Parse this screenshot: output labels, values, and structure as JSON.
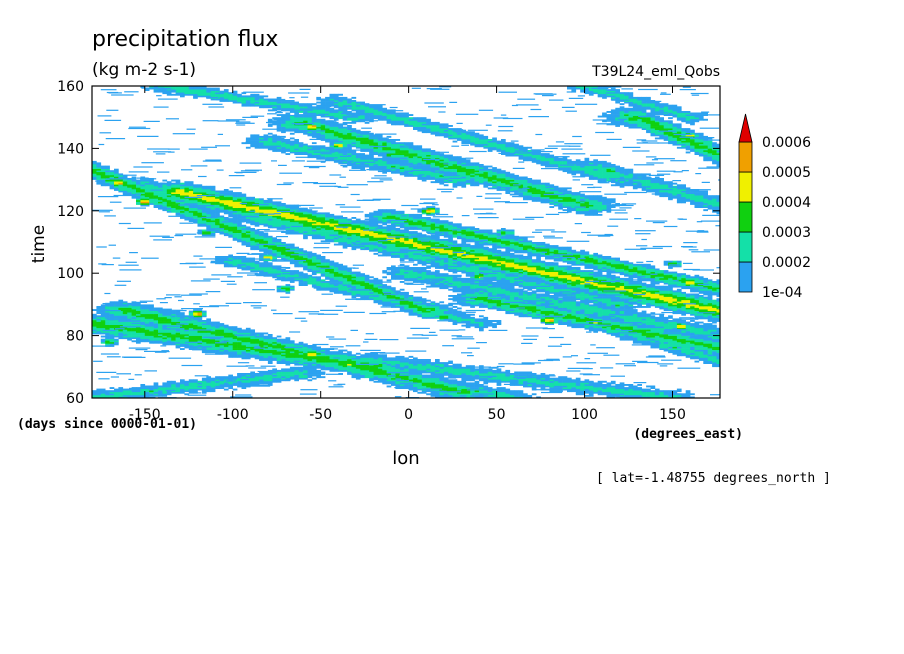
{
  "chart_data": {
    "type": "heatmap",
    "title": "precipitation flux",
    "subtitle": "(kg m-2 s-1)",
    "run_label": "T39L24_eml_Qobs",
    "xlabel": "lon",
    "xunits": "(degrees_east)",
    "ylabel": "time",
    "yunits": "(days since 0000-01-01)",
    "annotation": "[ lat=-1.48755 degrees_north ]",
    "xlim": [
      -180,
      177
    ],
    "ylim": [
      60,
      160
    ],
    "xticks": [
      -150,
      -100,
      -50,
      0,
      50,
      100,
      150
    ],
    "xtick_labels": [
      "-150",
      "-100",
      "-50",
      "0",
      "50",
      "100",
      "150"
    ],
    "yticks": [
      60,
      80,
      100,
      120,
      140,
      160
    ],
    "ytick_labels": [
      "60",
      "80",
      "100",
      "120",
      "140",
      "160"
    ],
    "grid": false,
    "legend_position": "right",
    "levels": [
      0.0001,
      0.0002,
      0.0003,
      0.0004,
      0.0005,
      0.0006
    ],
    "level_labels": [
      "1e-04",
      "0.0002",
      "0.0003",
      "0.0004",
      "0.0005",
      "0.0006"
    ],
    "colors": [
      "#2ba2f0",
      "#14e0a8",
      "#10d010",
      "#f0f000",
      "#f0a000",
      "#e00000"
    ],
    "bands": [
      {
        "lon": [
          -180,
          10
        ],
        "time": [
          133,
          88
        ],
        "width": 2.2,
        "level": 3
      },
      {
        "lon": [
          -150,
          80
        ],
        "time": [
          128,
          100
        ],
        "width": 2.0,
        "level": 2
      },
      {
        "lon": [
          -130,
          177
        ],
        "time": [
          126,
          88
        ],
        "width": 2.5,
        "level": 4
      },
      {
        "lon": [
          -90,
          120
        ],
        "time": [
          118,
          90
        ],
        "width": 1.8,
        "level": 2
      },
      {
        "lon": [
          -10,
          177
        ],
        "time": [
          118,
          95
        ],
        "width": 1.8,
        "level": 3
      },
      {
        "lon": [
          -180,
          -20
        ],
        "time": [
          84,
          70
        ],
        "width": 2.5,
        "level": 3
      },
      {
        "lon": [
          -160,
          30
        ],
        "time": [
          88,
          62
        ],
        "width": 2.4,
        "level": 3
      },
      {
        "lon": [
          -110,
          60
        ],
        "time": [
          78,
          60
        ],
        "width": 2.0,
        "level": 2
      },
      {
        "lon": [
          -60,
          100
        ],
        "time": [
          148,
          122
        ],
        "width": 2.4,
        "level": 3
      },
      {
        "lon": [
          -80,
          30
        ],
        "time": [
          142,
          130
        ],
        "width": 2.0,
        "level": 2
      },
      {
        "lon": [
          -40,
          120
        ],
        "time": [
          155,
          130
        ],
        "width": 1.8,
        "level": 2
      },
      {
        "lon": [
          -140,
          -30
        ],
        "time": [
          160,
          150
        ],
        "width": 1.6,
        "level": 2
      },
      {
        "lon": [
          0,
          177
        ],
        "time": [
          100,
          80
        ],
        "width": 2.2,
        "level": 2
      },
      {
        "lon": [
          40,
          177
        ],
        "time": [
          92,
          76
        ],
        "width": 2.0,
        "level": 3
      },
      {
        "lon": [
          80,
          177
        ],
        "time": [
          88,
          72
        ],
        "width": 1.8,
        "level": 2
      },
      {
        "lon": [
          130,
          177
        ],
        "time": [
          150,
          138
        ],
        "width": 2.5,
        "level": 3
      },
      {
        "lon": [
          100,
          160
        ],
        "time": [
          160,
          150
        ],
        "width": 1.6,
        "level": 2
      },
      {
        "lon": [
          -180,
          -60
        ],
        "time": [
          60,
          68
        ],
        "width": 1.8,
        "level": 2
      },
      {
        "lon": [
          -20,
          150
        ],
        "time": [
          72,
          60
        ],
        "width": 2.0,
        "level": 2
      },
      {
        "lon": [
          105,
          177
        ],
        "time": [
          134,
          122
        ],
        "width": 2.2,
        "level": 2
      },
      {
        "lon": [
          -100,
          40
        ],
        "time": [
          104,
          84
        ],
        "width": 1.6,
        "level": 2
      }
    ],
    "hotspots": [
      {
        "lon": -165,
        "time": 129,
        "level": 5
      },
      {
        "lon": -150,
        "time": 123,
        "level": 5
      },
      {
        "lon": -55,
        "time": 147,
        "level": 5
      },
      {
        "lon": -40,
        "time": 141,
        "level": 4
      },
      {
        "lon": 12,
        "time": 120,
        "level": 5
      },
      {
        "lon": 80,
        "time": 85,
        "level": 5
      },
      {
        "lon": 160,
        "time": 97,
        "level": 5
      },
      {
        "lon": -120,
        "time": 87,
        "level": 5
      },
      {
        "lon": -55,
        "time": 74,
        "level": 5
      },
      {
        "lon": 155,
        "time": 83,
        "level": 4
      },
      {
        "lon": -80,
        "time": 105,
        "level": 4
      },
      {
        "lon": 40,
        "time": 99,
        "level": 4
      },
      {
        "lon": 160,
        "time": 144,
        "level": 4
      },
      {
        "lon": 115,
        "time": 133,
        "level": 3
      },
      {
        "lon": 150,
        "time": 103,
        "level": 3
      },
      {
        "lon": -70,
        "time": 95,
        "level": 3
      },
      {
        "lon": 20,
        "time": 86,
        "level": 3
      },
      {
        "lon": -170,
        "time": 78,
        "level": 3
      },
      {
        "lon": -10,
        "time": 138,
        "level": 3
      },
      {
        "lon": 120,
        "time": 90,
        "level": 3
      },
      {
        "lon": -115,
        "time": 113,
        "level": 3
      },
      {
        "lon": 55,
        "time": 113,
        "level": 3
      }
    ]
  }
}
